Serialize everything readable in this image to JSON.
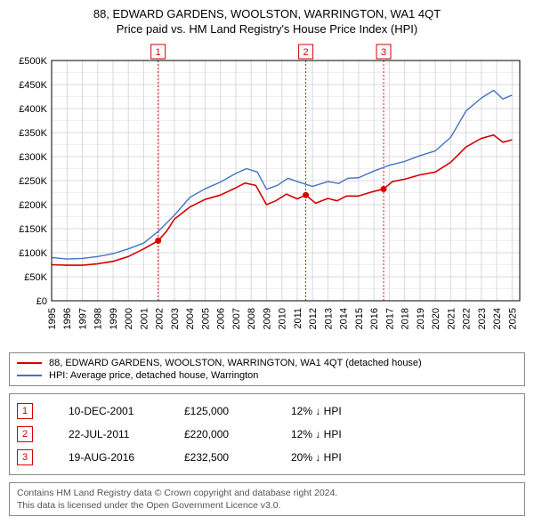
{
  "title": "88, EDWARD GARDENS, WOOLSTON, WARRINGTON, WA1 4QT",
  "subtitle": "Price paid vs. HM Land Registry's House Price Index (HPI)",
  "chart": {
    "type": "line",
    "background_color": "#ffffff",
    "plot_border_color": "#000000",
    "plot_border_width": 1,
    "grid_color_major": "#d9d9d9",
    "grid_color_minor": "#f0f0f0",
    "x": {
      "min": 1995,
      "max": 2025.5,
      "ticks": [
        1995,
        1996,
        1997,
        1998,
        1999,
        2000,
        2001,
        2002,
        2003,
        2004,
        2005,
        2006,
        2007,
        2008,
        2009,
        2010,
        2011,
        2012,
        2013,
        2014,
        2015,
        2016,
        2017,
        2018,
        2019,
        2020,
        2021,
        2022,
        2023,
        2024,
        2025
      ]
    },
    "y": {
      "min": 0,
      "max": 500000,
      "tick_step": 50000,
      "labels": [
        "£0",
        "£50K",
        "£100K",
        "£150K",
        "£200K",
        "£250K",
        "£300K",
        "£350K",
        "£400K",
        "£450K",
        "£500K"
      ]
    },
    "series": [
      {
        "id": "property",
        "color": "#d60000",
        "width": 1.6,
        "points": [
          [
            1995,
            75000
          ],
          [
            1996,
            74000
          ],
          [
            1997,
            74000
          ],
          [
            1998,
            77000
          ],
          [
            1999,
            82000
          ],
          [
            2000,
            92000
          ],
          [
            2001,
            108000
          ],
          [
            2001.94,
            125000
          ],
          [
            2002.5,
            145000
          ],
          [
            2003,
            170000
          ],
          [
            2004,
            195000
          ],
          [
            2005,
            211000
          ],
          [
            2006,
            220000
          ],
          [
            2007,
            235000
          ],
          [
            2007.6,
            245000
          ],
          [
            2008.3,
            240000
          ],
          [
            2009,
            200000
          ],
          [
            2009.6,
            208000
          ],
          [
            2010.3,
            222000
          ],
          [
            2011,
            212000
          ],
          [
            2011.56,
            220000
          ],
          [
            2012.2,
            203000
          ],
          [
            2013,
            213000
          ],
          [
            2013.6,
            208000
          ],
          [
            2014.2,
            218000
          ],
          [
            2015,
            218000
          ],
          [
            2015.8,
            226000
          ],
          [
            2016.63,
            232500
          ],
          [
            2017.2,
            248000
          ],
          [
            2018,
            253000
          ],
          [
            2019,
            262000
          ],
          [
            2020,
            268000
          ],
          [
            2021,
            288000
          ],
          [
            2022,
            320000
          ],
          [
            2023,
            338000
          ],
          [
            2023.8,
            345000
          ],
          [
            2024.4,
            330000
          ],
          [
            2025,
            335000
          ]
        ],
        "dots": [
          {
            "x": 2001.94,
            "y": 125000
          },
          {
            "x": 2011.56,
            "y": 220000
          },
          {
            "x": 2016.63,
            "y": 232500
          }
        ]
      },
      {
        "id": "hpi",
        "color": "#4472c4",
        "width": 1.4,
        "points": [
          [
            1995,
            90000
          ],
          [
            1996,
            87000
          ],
          [
            1997,
            88000
          ],
          [
            1998,
            92000
          ],
          [
            1999,
            98000
          ],
          [
            2000,
            108000
          ],
          [
            2001,
            120000
          ],
          [
            2002,
            146000
          ],
          [
            2003,
            178000
          ],
          [
            2004,
            215000
          ],
          [
            2005,
            233000
          ],
          [
            2006,
            247000
          ],
          [
            2007,
            265000
          ],
          [
            2007.7,
            275000
          ],
          [
            2008.4,
            268000
          ],
          [
            2009,
            232000
          ],
          [
            2009.7,
            240000
          ],
          [
            2010.4,
            255000
          ],
          [
            2011,
            248000
          ],
          [
            2012,
            238000
          ],
          [
            2013,
            248000
          ],
          [
            2013.7,
            244000
          ],
          [
            2014.3,
            255000
          ],
          [
            2015,
            256000
          ],
          [
            2016,
            270000
          ],
          [
            2017,
            282000
          ],
          [
            2018,
            290000
          ],
          [
            2019,
            302000
          ],
          [
            2020,
            312000
          ],
          [
            2021,
            340000
          ],
          [
            2022,
            395000
          ],
          [
            2023,
            422000
          ],
          [
            2023.8,
            438000
          ],
          [
            2024.4,
            420000
          ],
          [
            2025,
            428000
          ]
        ]
      }
    ],
    "markers": [
      {
        "n": "1",
        "x": 2001.94,
        "color": "#d60000"
      },
      {
        "n": "2",
        "x": 2011.56,
        "color": "#d60000"
      },
      {
        "n": "3",
        "x": 2016.63,
        "color": "#d60000"
      }
    ]
  },
  "legend": [
    {
      "color": "#d60000",
      "label": "88, EDWARD GARDENS, WOOLSTON, WARRINGTON, WA1 4QT (detached house)"
    },
    {
      "color": "#4472c4",
      "label": "HPI: Average price, detached house, Warrington"
    }
  ],
  "sales": [
    {
      "n": "1",
      "date": "10-DEC-2001",
      "price": "£125,000",
      "delta": "12% ↓ HPI",
      "color": "#d60000"
    },
    {
      "n": "2",
      "date": "22-JUL-2011",
      "price": "£220,000",
      "delta": "12% ↓ HPI",
      "color": "#d60000"
    },
    {
      "n": "3",
      "date": "19-AUG-2016",
      "price": "£232,500",
      "delta": "20% ↓ HPI",
      "color": "#d60000"
    }
  ],
  "footer": {
    "line1": "Contains HM Land Registry data © Crown copyright and database right 2024.",
    "line2": "This data is licensed under the Open Government Licence v3.0."
  }
}
